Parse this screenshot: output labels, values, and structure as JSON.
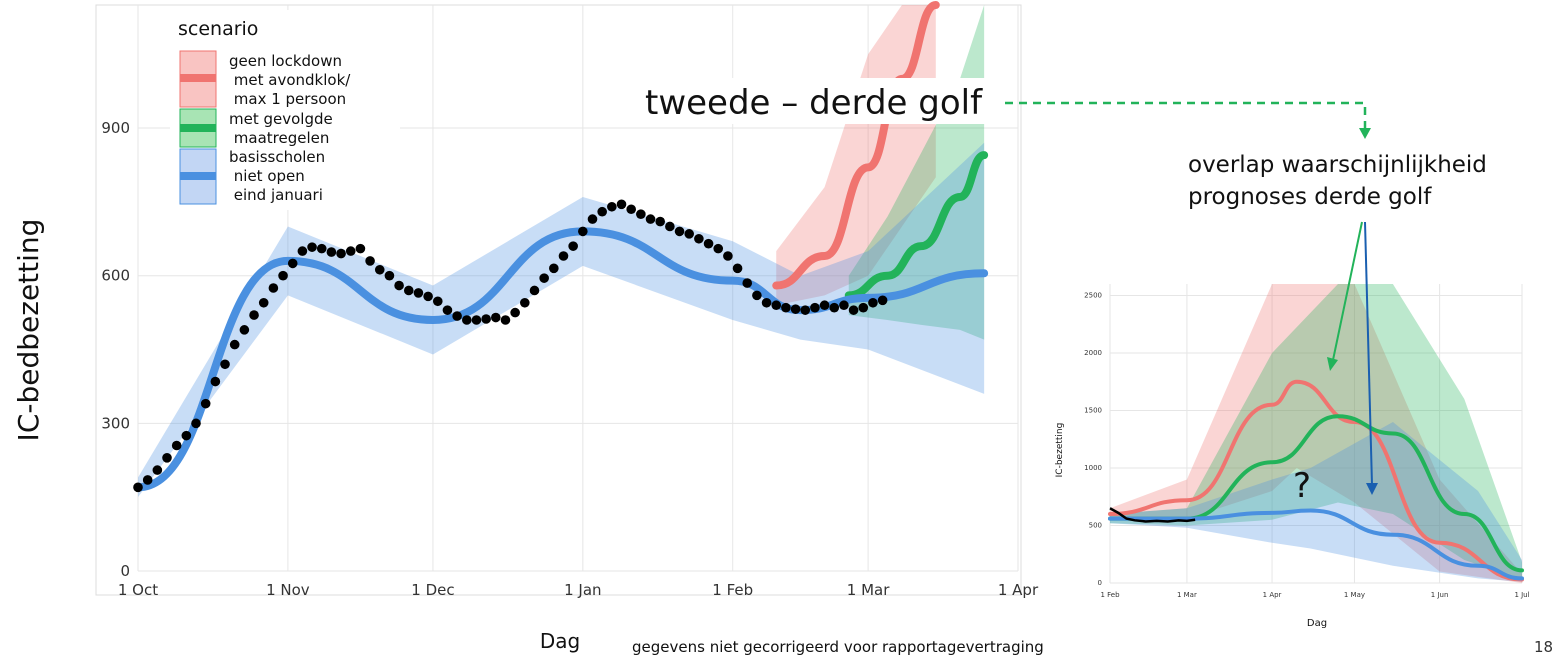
{
  "charts_text": {
    "annotation_main": "tweede – derde golf",
    "annotation_overlap": [
      "overlap waarschijnlijkheid",
      "prognoses derde golf"
    ],
    "question_mark": "?",
    "footnote": "gegevens niet gecorrigeerd voor rapportagevertraging",
    "page_number": "18"
  },
  "chart_data": [
    {
      "type": "line",
      "title": "",
      "xlabel": "Dag",
      "ylabel": "IC-bedbezetting",
      "x_ticks": [
        "1 Oct",
        "1 Nov",
        "1 Dec",
        "1 Jan",
        "1 Feb",
        "1 Mar",
        "1 Apr"
      ],
      "y_ticks": [
        0,
        300,
        600,
        900
      ],
      "ylim": [
        0,
        1150
      ],
      "grid": true,
      "legend": {
        "title": "scenario",
        "position": "top-left",
        "entries": [
          {
            "label": [
              "geen lockdown",
              " met avondklok/",
              " max 1 persoon"
            ],
            "color": "#f07470",
            "band": "#f9c4c2"
          },
          {
            "label": [
              "met gevolgde",
              " maatregelen"
            ],
            "color": "#22b35a",
            "band": "#a8e4b4"
          },
          {
            "label": [
              "basisscholen",
              " niet open",
              " eind januari"
            ],
            "color": "#4a90e0",
            "band": "#c2d6f4"
          }
        ]
      },
      "observed_points": [
        [
          "2020-10-01",
          170
        ],
        [
          "2020-10-03",
          185
        ],
        [
          "2020-10-05",
          205
        ],
        [
          "2020-10-07",
          230
        ],
        [
          "2020-10-09",
          255
        ],
        [
          "2020-10-11",
          275
        ],
        [
          "2020-10-13",
          300
        ],
        [
          "2020-10-15",
          340
        ],
        [
          "2020-10-17",
          385
        ],
        [
          "2020-10-19",
          420
        ],
        [
          "2020-10-21",
          460
        ],
        [
          "2020-10-23",
          490
        ],
        [
          "2020-10-25",
          520
        ],
        [
          "2020-10-27",
          545
        ],
        [
          "2020-10-29",
          575
        ],
        [
          "2020-10-31",
          600
        ],
        [
          "2020-11-02",
          625
        ],
        [
          "2020-11-04",
          650
        ],
        [
          "2020-11-06",
          658
        ],
        [
          "2020-11-08",
          655
        ],
        [
          "2020-11-10",
          648
        ],
        [
          "2020-11-12",
          645
        ],
        [
          "2020-11-14",
          650
        ],
        [
          "2020-11-16",
          655
        ],
        [
          "2020-11-18",
          630
        ],
        [
          "2020-11-20",
          612
        ],
        [
          "2020-11-22",
          600
        ],
        [
          "2020-11-24",
          580
        ],
        [
          "2020-11-26",
          570
        ],
        [
          "2020-11-28",
          565
        ],
        [
          "2020-11-30",
          558
        ],
        [
          "2020-12-02",
          548
        ],
        [
          "2020-12-04",
          530
        ],
        [
          "2020-12-06",
          518
        ],
        [
          "2020-12-08",
          510
        ],
        [
          "2020-12-10",
          510
        ],
        [
          "2020-12-12",
          512
        ],
        [
          "2020-12-14",
          515
        ],
        [
          "2020-12-16",
          510
        ],
        [
          "2020-12-18",
          525
        ],
        [
          "2020-12-20",
          545
        ],
        [
          "2020-12-22",
          570
        ],
        [
          "2020-12-24",
          595
        ],
        [
          "2020-12-26",
          615
        ],
        [
          "2020-12-28",
          640
        ],
        [
          "2020-12-30",
          660
        ],
        [
          "2021-01-01",
          690
        ],
        [
          "2021-01-03",
          715
        ],
        [
          "2021-01-05",
          730
        ],
        [
          "2021-01-07",
          740
        ],
        [
          "2021-01-09",
          745
        ],
        [
          "2021-01-11",
          735
        ],
        [
          "2021-01-13",
          725
        ],
        [
          "2021-01-15",
          715
        ],
        [
          "2021-01-17",
          710
        ],
        [
          "2021-01-19",
          700
        ],
        [
          "2021-01-21",
          690
        ],
        [
          "2021-01-23",
          685
        ],
        [
          "2021-01-25",
          675
        ],
        [
          "2021-01-27",
          665
        ],
        [
          "2021-01-29",
          655
        ],
        [
          "2021-01-31",
          640
        ],
        [
          "2021-02-02",
          615
        ],
        [
          "2021-02-04",
          585
        ],
        [
          "2021-02-06",
          560
        ],
        [
          "2021-02-08",
          545
        ],
        [
          "2021-02-10",
          540
        ],
        [
          "2021-02-12",
          535
        ],
        [
          "2021-02-14",
          532
        ],
        [
          "2021-02-16",
          530
        ],
        [
          "2021-02-18",
          535
        ],
        [
          "2021-02-20",
          540
        ],
        [
          "2021-02-22",
          535
        ],
        [
          "2021-02-24",
          540
        ],
        [
          "2021-02-26",
          530
        ],
        [
          "2021-02-28",
          535
        ],
        [
          "2021-03-02",
          545
        ],
        [
          "2021-03-04",
          550
        ]
      ],
      "series": [
        {
          "color": "#f07470",
          "x": [
            "2021-02-10",
            "2021-02-20",
            "2021-03-01",
            "2021-03-08",
            "2021-03-15"
          ],
          "y": [
            580,
            640,
            820,
            1000,
            1150
          ],
          "band_low": [
            540,
            560,
            600,
            700,
            800
          ],
          "band_high": [
            650,
            780,
            1050,
            1150,
            1150
          ]
        },
        {
          "color": "#22b35a",
          "x": [
            "2021-02-25",
            "2021-03-05",
            "2021-03-12",
            "2021-03-20",
            "2021-03-25"
          ],
          "y": [
            560,
            600,
            660,
            760,
            845
          ],
          "band_low": [
            520,
            510,
            500,
            490,
            470
          ],
          "band_high": [
            600,
            720,
            850,
            1000,
            1150
          ]
        },
        {
          "color": "#4a90e0",
          "x": [
            "2020-10-01",
            "2020-11-01",
            "2020-12-01",
            "2021-01-01",
            "2021-02-01",
            "2021-02-15",
            "2021-03-01",
            "2021-03-25"
          ],
          "y": [
            170,
            630,
            510,
            690,
            590,
            530,
            555,
            605
          ],
          "band_low": [
            150,
            560,
            440,
            620,
            510,
            470,
            450,
            360
          ],
          "band_high": [
            190,
            700,
            580,
            760,
            670,
            600,
            650,
            870
          ]
        }
      ]
    },
    {
      "type": "line",
      "title": "",
      "xlabel": "Dag",
      "ylabel": "IC-bezetting",
      "x_ticks": [
        "1 Feb",
        "1 Mar",
        "1 Apr",
        "1 May",
        "1 Jun",
        "1 Jul"
      ],
      "y_ticks": [
        0,
        500,
        1000,
        1500,
        2000,
        2500
      ],
      "ylim": [
        0,
        2600
      ],
      "grid": true,
      "observed_points": [
        [
          "2021-02-01",
          650
        ],
        [
          "2021-02-04",
          610
        ],
        [
          "2021-02-07",
          560
        ],
        [
          "2021-02-10",
          545
        ],
        [
          "2021-02-14",
          535
        ],
        [
          "2021-02-18",
          540
        ],
        [
          "2021-02-22",
          535
        ],
        [
          "2021-02-26",
          545
        ],
        [
          "2021-03-01",
          540
        ],
        [
          "2021-03-04",
          550
        ]
      ],
      "series": [
        {
          "color": "#f07470",
          "x": [
            "2021-02-01",
            "2021-03-01",
            "2021-04-01",
            "2021-04-10",
            "2021-05-01",
            "2021-06-01",
            "2021-07-01"
          ],
          "y": [
            600,
            720,
            1550,
            1750,
            1400,
            350,
            30
          ],
          "band_low": [
            550,
            560,
            800,
            1000,
            700,
            100,
            0
          ],
          "band_high": [
            650,
            900,
            2600,
            2600,
            2600,
            900,
            80
          ]
        },
        {
          "color": "#22b35a",
          "x": [
            "2021-02-01",
            "2021-03-01",
            "2021-04-01",
            "2021-04-25",
            "2021-05-15",
            "2021-06-10",
            "2021-07-01"
          ],
          "y": [
            560,
            560,
            1050,
            1450,
            1300,
            600,
            110
          ],
          "band_low": [
            520,
            500,
            550,
            700,
            600,
            200,
            30
          ],
          "band_high": [
            600,
            650,
            2000,
            2600,
            2600,
            1600,
            180
          ]
        },
        {
          "color": "#4a90e0",
          "x": [
            "2021-02-01",
            "2021-03-01",
            "2021-04-01",
            "2021-04-15",
            "2021-05-15",
            "2021-06-15",
            "2021-07-01"
          ],
          "y": [
            560,
            560,
            610,
            630,
            420,
            150,
            40
          ],
          "band_low": [
            520,
            480,
            350,
            300,
            150,
            40,
            10
          ],
          "band_high": [
            600,
            650,
            900,
            1000,
            1400,
            800,
            200
          ]
        }
      ]
    }
  ]
}
